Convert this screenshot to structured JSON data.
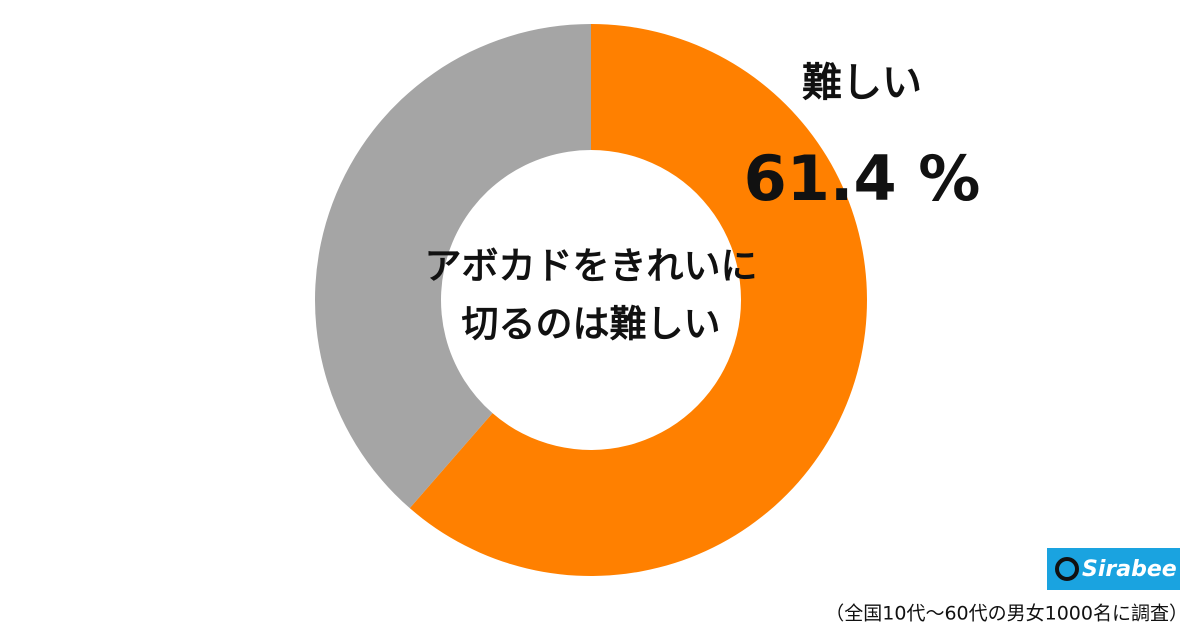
{
  "chart_data": {
    "type": "donut",
    "center_text": [
      "アボカドをきれいに",
      "切るのは難しい"
    ],
    "categories": [
      "難しい",
      null
    ],
    "values": [
      61.4,
      38.6
    ],
    "value_labels": [
      "61.4 %",
      null
    ],
    "colors": [
      "#ff8000",
      "#a5a5a5"
    ]
  },
  "logo": "Sirabee",
  "footnote": "（全国10代～60代の男女1000名に調査）"
}
